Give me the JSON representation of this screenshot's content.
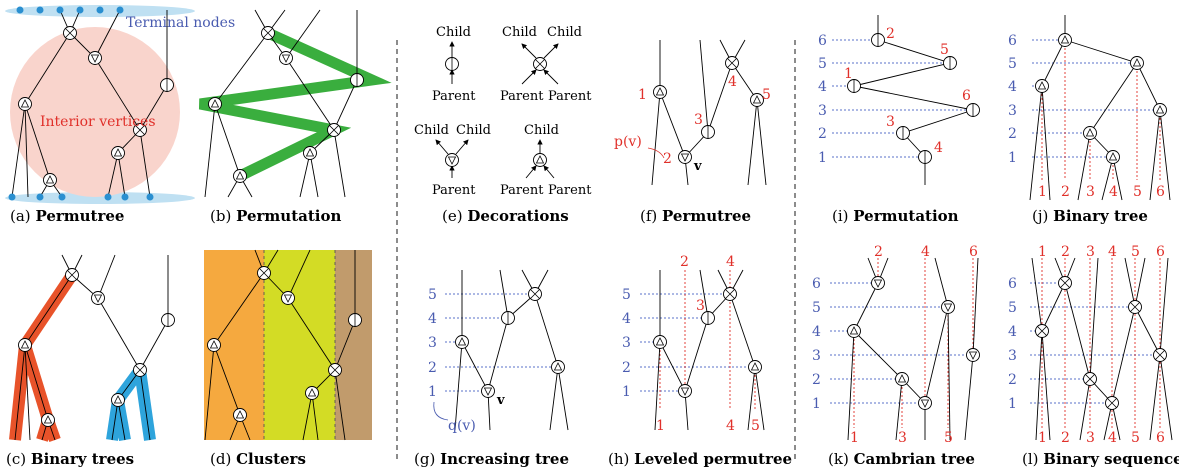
{
  "colors": {
    "interior": "#f9d4cc",
    "terminal": "#bfe0f2",
    "terminal_dot": "#2a8fd0",
    "green": "#3aae3e",
    "orange_red": "#e8532a",
    "blue_band": "#2ea4dc",
    "cluster_orange": "#f5a93f",
    "cluster_lime": "#d3dc25",
    "cluster_brown": "#c19b6c",
    "red_label": "#e0302a",
    "blue_label": "#4a5cb0"
  },
  "panel_a": {
    "caption_letter": "(a)",
    "caption": "Permutree",
    "terminal_label": "Terminal nodes",
    "interior_label": "Interior vertices"
  },
  "panel_b": {
    "caption_letter": "(b)",
    "caption": "Permutation"
  },
  "panel_c": {
    "caption_letter": "(c)",
    "caption": "Binary trees"
  },
  "panel_d": {
    "caption_letter": "(d)",
    "caption": "Clusters"
  },
  "panel_e": {
    "caption_letter": "(e)",
    "caption": "Decorations",
    "child": "Child",
    "parent": "Parent"
  },
  "panel_f": {
    "caption_letter": "(f)",
    "caption": "Permutree",
    "p_label": "p(v)",
    "v_label": "v",
    "nums": [
      "1",
      "2",
      "3",
      "4",
      "5"
    ]
  },
  "panel_g": {
    "caption_letter": "(g)",
    "caption": "Increasing tree",
    "q_label": "q(v)",
    "v_label": "v",
    "levels": [
      "5",
      "4",
      "3",
      "2",
      "1"
    ]
  },
  "panel_h": {
    "caption_letter": "(h)",
    "caption": "Leveled permutree",
    "levels": [
      "5",
      "4",
      "3",
      "2",
      "1"
    ],
    "top_nums": [
      "2",
      "4"
    ],
    "bottom_nums": [
      "1",
      "4",
      "5"
    ],
    "mid_num": "3"
  },
  "panel_i": {
    "caption_letter": "(i)",
    "caption": "Permutation",
    "levels": [
      "6",
      "5",
      "4",
      "3",
      "2",
      "1"
    ],
    "red_nums": [
      "2",
      "5",
      "1",
      "6",
      "3",
      "4"
    ]
  },
  "panel_j": {
    "caption_letter": "(j)",
    "caption": "Binary tree",
    "levels": [
      "6",
      "5",
      "4",
      "3",
      "2",
      "1"
    ],
    "bottom_nums": [
      "1",
      "2",
      "3",
      "4",
      "5",
      "6"
    ]
  },
  "panel_k": {
    "caption_letter": "(k)",
    "caption": "Cambrian tree",
    "levels": [
      "6",
      "5",
      "4",
      "3",
      "2",
      "1"
    ],
    "top_nums": [
      "2",
      "4",
      "6"
    ],
    "bottom_nums": [
      "1",
      "3",
      "5"
    ]
  },
  "panel_l": {
    "caption_letter": "(l)",
    "caption": "Binary sequence",
    "levels": [
      "6",
      "5",
      "4",
      "3",
      "2",
      "1"
    ],
    "top_nums": [
      "1",
      "2",
      "3",
      "4",
      "5",
      "6"
    ],
    "bottom_nums": [
      "1",
      "2",
      "3",
      "4",
      "5",
      "6"
    ]
  }
}
